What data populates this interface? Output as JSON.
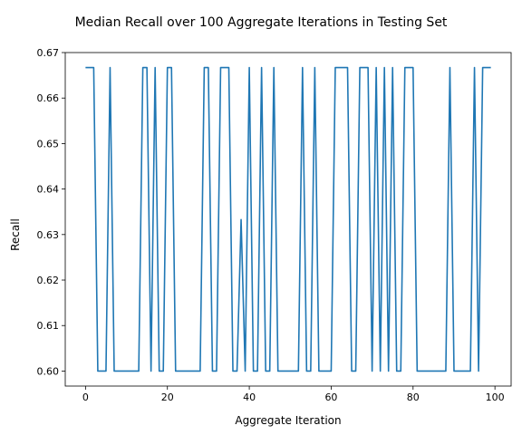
{
  "chart_data": {
    "type": "line",
    "title": "Median Recall over 100 Aggregate Iterations in Testing Set",
    "xlabel": "Aggregate Iteration",
    "ylabel": "Recall",
    "xlim": [
      -4.95,
      103.95
    ],
    "ylim": [
      0.5967,
      0.67
    ],
    "xticks": [
      0,
      20,
      40,
      60,
      80,
      100
    ],
    "yticks": [
      0.6,
      0.61,
      0.62,
      0.63,
      0.64,
      0.65,
      0.66,
      0.67
    ],
    "grid": false,
    "series": [
      {
        "color": "#1f77b4",
        "x": [
          0,
          1,
          2,
          3,
          4,
          5,
          6,
          7,
          8,
          9,
          10,
          11,
          12,
          13,
          14,
          15,
          16,
          17,
          18,
          19,
          20,
          21,
          22,
          23,
          24,
          25,
          26,
          27,
          28,
          29,
          30,
          31,
          32,
          33,
          34,
          35,
          36,
          37,
          38,
          39,
          40,
          41,
          42,
          43,
          44,
          45,
          46,
          47,
          48,
          49,
          50,
          51,
          52,
          53,
          54,
          55,
          56,
          57,
          58,
          59,
          60,
          61,
          62,
          63,
          64,
          65,
          66,
          67,
          68,
          69,
          70,
          71,
          72,
          73,
          74,
          75,
          76,
          77,
          78,
          79,
          80,
          81,
          82,
          83,
          84,
          85,
          86,
          87,
          88,
          89,
          90,
          91,
          92,
          93,
          94,
          95,
          96,
          97,
          98,
          99
        ],
        "y": [
          0.6667,
          0.6667,
          0.6667,
          0.6,
          0.6,
          0.6,
          0.6667,
          0.6,
          0.6,
          0.6,
          0.6,
          0.6,
          0.6,
          0.6,
          0.6667,
          0.6667,
          0.6,
          0.6667,
          0.6,
          0.6,
          0.6667,
          0.6667,
          0.6,
          0.6,
          0.6,
          0.6,
          0.6,
          0.6,
          0.6,
          0.6667,
          0.6667,
          0.6,
          0.6,
          0.6667,
          0.6667,
          0.6667,
          0.6,
          0.6,
          0.6333,
          0.6,
          0.6667,
          0.6,
          0.6,
          0.6667,
          0.6,
          0.6,
          0.6667,
          0.6,
          0.6,
          0.6,
          0.6,
          0.6,
          0.6,
          0.6667,
          0.6,
          0.6,
          0.6667,
          0.6,
          0.6,
          0.6,
          0.6,
          0.6667,
          0.6667,
          0.6667,
          0.6667,
          0.6,
          0.6,
          0.6667,
          0.6667,
          0.6667,
          0.6,
          0.6667,
          0.6,
          0.6667,
          0.6,
          0.6667,
          0.6,
          0.6,
          0.6667,
          0.6667,
          0.6667,
          0.6,
          0.6,
          0.6,
          0.6,
          0.6,
          0.6,
          0.6,
          0.6,
          0.6667,
          0.6,
          0.6,
          0.6,
          0.6,
          0.6,
          0.6667,
          0.6,
          0.6667,
          0.6667,
          0.6667
        ]
      }
    ]
  }
}
